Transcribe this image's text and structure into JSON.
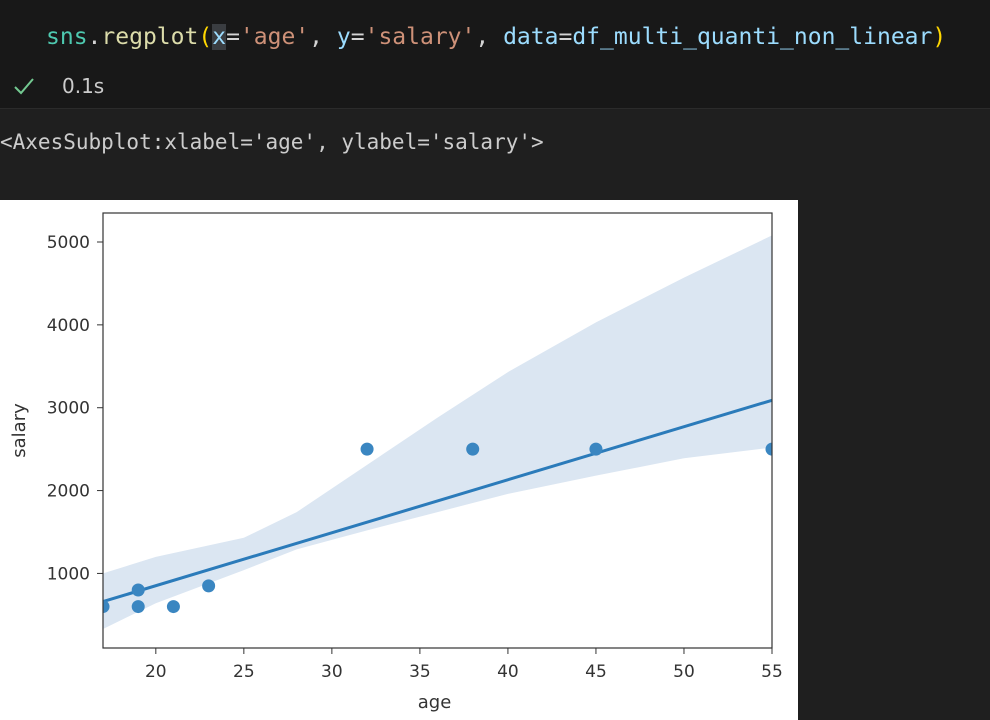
{
  "cell": {
    "code": {
      "obj": "sns",
      "dot": ".",
      "func": "regplot",
      "open_paren": "(",
      "x_param": "x",
      "eq1": "=",
      "x_value": "'age'",
      "sep1": ", ",
      "y_param": "y",
      "eq2": "=",
      "y_value": "'salary'",
      "sep2": ", ",
      "data_param": "data",
      "eq3": "=",
      "data_value": "df_multi_quanti_non_linear",
      "close_paren": ")"
    },
    "status": {
      "icon": "check-icon",
      "time": "0.1s"
    }
  },
  "output": {
    "text": "<AxesSubplot:xlabel='age', ylabel='salary'>"
  },
  "colors": {
    "editor_bg": "#1f1f1f",
    "points": "#3a86c1",
    "line": "#2b7bba",
    "ci_band": "#dbe6f2",
    "check": "#73c991"
  },
  "chart_data": {
    "type": "scatter",
    "xlabel": "age",
    "ylabel": "salary",
    "xlim": [
      17,
      55
    ],
    "ylim": [
      100,
      5350
    ],
    "xticks": [
      20,
      25,
      30,
      35,
      40,
      45,
      50,
      55
    ],
    "yticks": [
      1000,
      2000,
      3000,
      4000,
      5000
    ],
    "grid": false,
    "points": [
      {
        "x": 17,
        "y": 600
      },
      {
        "x": 19,
        "y": 600
      },
      {
        "x": 19,
        "y": 800
      },
      {
        "x": 21,
        "y": 600
      },
      {
        "x": 23,
        "y": 850
      },
      {
        "x": 32,
        "y": 2500
      },
      {
        "x": 38,
        "y": 2500
      },
      {
        "x": 45,
        "y": 2500
      },
      {
        "x": 55,
        "y": 2500
      }
    ],
    "regression_line": {
      "x": [
        17,
        55
      ],
      "y": [
        660,
        3090
      ]
    },
    "confidence_band": {
      "x": [
        17,
        20,
        25,
        28,
        32,
        36,
        40,
        45,
        50,
        55
      ],
      "upper": [
        1000,
        1200,
        1430,
        1740,
        2310,
        2880,
        3430,
        4030,
        4570,
        5080
      ],
      "lower": [
        330,
        640,
        1040,
        1290,
        1520,
        1740,
        1960,
        2180,
        2390,
        2520
      ]
    }
  }
}
